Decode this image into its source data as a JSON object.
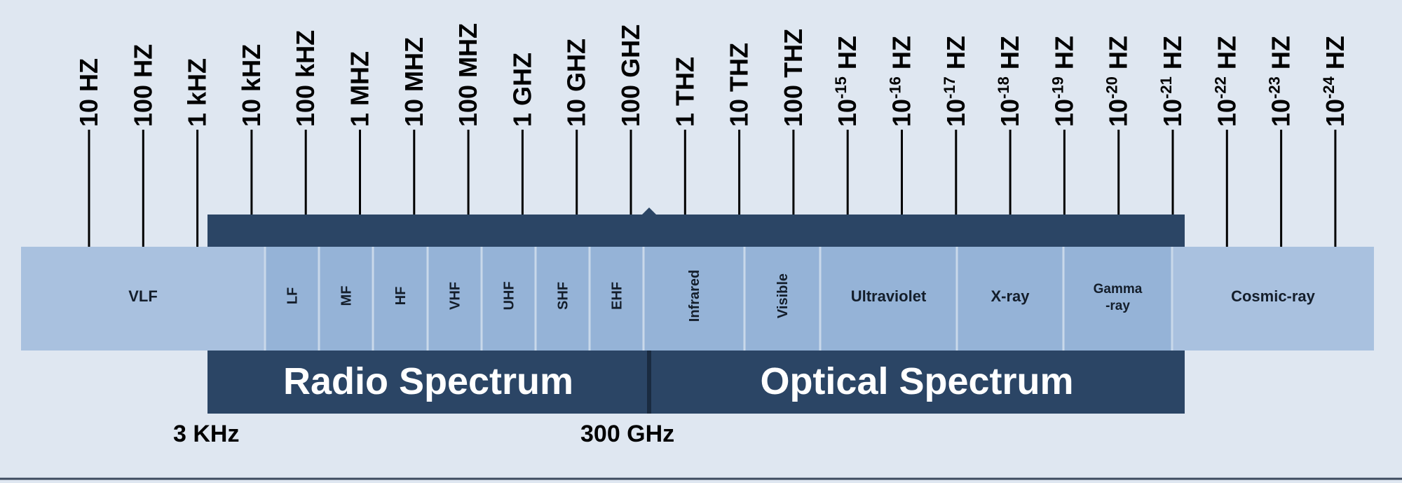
{
  "frequency_labels": [
    {
      "base": "10 HZ"
    },
    {
      "base": "100 HZ"
    },
    {
      "base": "1 kHZ"
    },
    {
      "base": "10 kHZ"
    },
    {
      "base": "100 kHZ"
    },
    {
      "base": "1 MHZ"
    },
    {
      "base": "10 MHZ"
    },
    {
      "base": "100 MHZ"
    },
    {
      "base": "1 GHZ"
    },
    {
      "base": "10 GHZ"
    },
    {
      "base": "100 GHZ"
    },
    {
      "base": "1 THZ"
    },
    {
      "base": "10 THZ"
    },
    {
      "base": "100 THZ"
    },
    {
      "base": "10",
      "sup": "-15",
      "suffix": " HZ"
    },
    {
      "base": "10",
      "sup": "-16",
      "suffix": " HZ"
    },
    {
      "base": "10",
      "sup": "-17",
      "suffix": " HZ"
    },
    {
      "base": "10",
      "sup": "-18",
      "suffix": " HZ"
    },
    {
      "base": "10",
      "sup": "-19",
      "suffix": " HZ"
    },
    {
      "base": "10",
      "sup": "-20",
      "suffix": " HZ"
    },
    {
      "base": "10",
      "sup": "-21",
      "suffix": " HZ"
    },
    {
      "base": "10",
      "sup": "-22",
      "suffix": " HZ"
    },
    {
      "base": "10",
      "sup": "-23",
      "suffix": " HZ"
    },
    {
      "base": "10",
      "sup": "-24",
      "suffix": " HZ"
    }
  ],
  "bands": [
    {
      "label": "VLF",
      "orientation": "horizontal"
    },
    {
      "label": "LF",
      "orientation": "vertical"
    },
    {
      "label": "MF",
      "orientation": "vertical"
    },
    {
      "label": "HF",
      "orientation": "vertical"
    },
    {
      "label": "VHF",
      "orientation": "vertical"
    },
    {
      "label": "UHF",
      "orientation": "vertical"
    },
    {
      "label": "SHF",
      "orientation": "vertical"
    },
    {
      "label": "EHF",
      "orientation": "vertical"
    },
    {
      "label": "Infrared",
      "orientation": "vertical"
    },
    {
      "label": "Visible",
      "orientation": "vertical"
    },
    {
      "label": "Ultraviolet",
      "orientation": "horizontal"
    },
    {
      "label": "X-ray",
      "orientation": "horizontal"
    },
    {
      "label": "Gamma\n-ray",
      "orientation": "horizontal"
    },
    {
      "label": "Cosmic-ray",
      "orientation": "horizontal"
    }
  ],
  "spectrum_groups": {
    "radio": "Radio Spectrum",
    "optical": "Optical Spectrum"
  },
  "boundaries": {
    "low": "3 KHz",
    "high": "300 GHz"
  },
  "colors": {
    "background": "#dfe7f1",
    "band_fill": "#95b3d7",
    "vlf_fill": "#a9c1df",
    "group_fill": "#2b4565",
    "tick": "#000000"
  }
}
